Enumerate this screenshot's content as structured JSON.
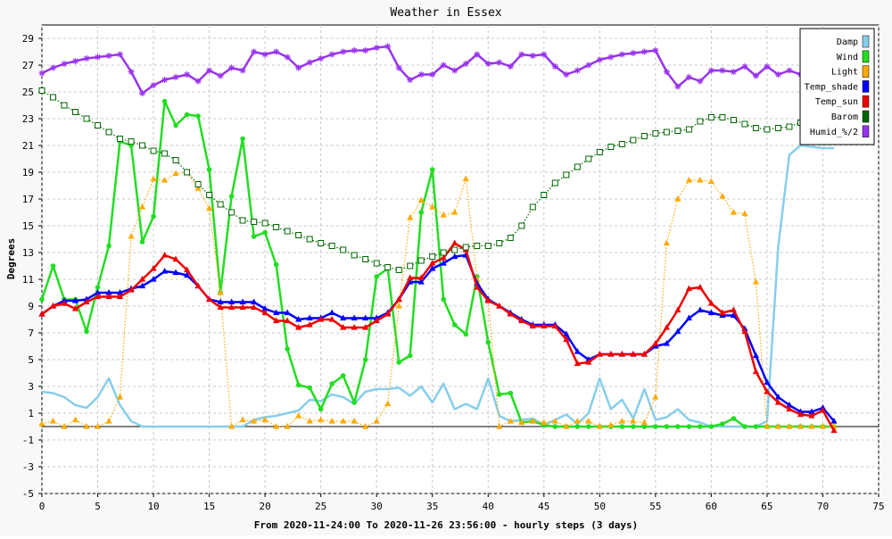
{
  "chart_data": {
    "type": "line",
    "title": "Weather in Essex",
    "xlabel": "From 2020-11-24:00 To 2020-11-26 23:56:00 - hourly steps (3 days)",
    "ylabel": "Degrees",
    "xlim": [
      0,
      75
    ],
    "ylim": [
      -5,
      30
    ],
    "x_ticks": [
      0,
      5,
      10,
      15,
      20,
      25,
      30,
      35,
      40,
      45,
      50,
      55,
      60,
      65,
      70,
      75
    ],
    "y_ticks": [
      -5,
      -3,
      -1,
      1,
      3,
      5,
      7,
      9,
      11,
      13,
      15,
      17,
      19,
      21,
      23,
      25,
      27,
      29
    ],
    "grid": true,
    "legend_position": "top-right",
    "series": [
      {
        "name": "Damp",
        "color": "#87ceeb",
        "style": "solid",
        "marker": "none",
        "values": [
          2.6,
          2.5,
          2.2,
          1.6,
          1.4,
          2.2,
          3.6,
          1.6,
          0.4,
          0,
          0,
          0,
          0,
          0,
          0,
          0,
          0,
          0,
          0,
          0.5,
          0.7,
          0.8,
          1,
          1.2,
          2,
          1.9,
          2.4,
          2.2,
          1.7,
          2.6,
          2.8,
          2.8,
          2.9,
          2.3,
          3,
          1.8,
          3.2,
          1.3,
          1.7,
          1.3,
          3.6,
          0.8,
          0.4,
          0.5,
          0.6,
          0.1,
          0.5,
          0.9,
          0.2,
          1,
          3.6,
          1.3,
          2,
          0.6,
          2.8,
          0.5,
          0.7,
          1.3,
          0.5,
          0.3,
          0,
          0,
          0,
          0,
          0,
          0.4,
          13.4,
          20.3,
          21,
          20.9,
          20.8,
          20.8
        ]
      },
      {
        "name": "Wind",
        "color": "#22dd22",
        "style": "solid",
        "marker": "circle",
        "values": [
          9.5,
          12,
          9.5,
          9.5,
          7.1,
          10.4,
          13.5,
          21.3,
          21.0,
          13.8,
          15.7,
          24.3,
          22.5,
          23.3,
          23.2,
          19.2,
          10,
          17.2,
          21.5,
          14.2,
          14.5,
          12.1,
          5.8,
          3.1,
          2.9,
          1.3,
          3.2,
          3.8,
          1.8,
          5,
          11.2,
          11.8,
          4.8,
          5.3,
          16,
          19.2,
          9.5,
          7.6,
          6.9,
          11.2,
          6.3,
          2.4,
          2.5,
          0.3,
          0.4,
          0.1,
          0,
          0,
          0,
          0,
          0,
          0,
          0,
          0,
          0,
          0,
          0,
          0,
          0,
          0,
          0,
          0.2,
          0.6,
          0,
          0,
          0,
          0,
          0,
          0,
          0,
          0,
          0
        ]
      },
      {
        "name": "Light",
        "color": "#ffaa00",
        "style": "dotted",
        "marker": "triangle",
        "values": [
          0.2,
          0.4,
          0,
          0.5,
          0,
          0,
          0.4,
          2.2,
          14.2,
          16.4,
          18.5,
          18.4,
          18.9,
          19,
          17.8,
          16.3,
          10,
          0,
          0.5,
          0.4,
          0.5,
          0,
          0,
          0.8,
          0.4,
          0.5,
          0.4,
          0.4,
          0.4,
          0,
          0.4,
          1.7,
          9,
          15.6,
          16.9,
          16.4,
          15.8,
          16,
          18.5,
          11,
          9.4,
          0,
          0.4,
          0.3,
          0.4,
          0.3,
          0.4,
          0,
          0.4,
          0.4,
          0,
          0.1,
          0.4,
          0.4,
          0.3,
          2.2,
          13.7,
          17,
          18.4,
          18.4,
          18.3,
          17.2,
          16,
          15.9,
          10.8,
          0,
          0,
          0,
          0,
          0,
          0,
          0
        ]
      },
      {
        "name": "Temp_shade",
        "color": "#0000ff",
        "style": "solid",
        "marker": "triangle",
        "values": [
          8.4,
          9,
          9.4,
          9.4,
          9.5,
          10,
          10,
          10,
          10.3,
          10.5,
          11,
          11.6,
          11.5,
          11.3,
          10.5,
          9.5,
          9.3,
          9.3,
          9.3,
          9.3,
          8.8,
          8.5,
          8.5,
          8,
          8.1,
          8.1,
          8.5,
          8.1,
          8.1,
          8.1,
          8.1,
          8.5,
          9.5,
          10.8,
          10.8,
          11.8,
          12.2,
          12.7,
          12.8,
          10.7,
          9.5,
          9,
          8.5,
          8,
          7.6,
          7.6,
          7.6,
          6.9,
          5.6,
          5.0,
          5.4,
          5.4,
          5.4,
          5.4,
          5.4,
          6,
          6.2,
          7.1,
          8.1,
          8.7,
          8.5,
          8.3,
          8.3,
          7.3,
          5.3,
          3.3,
          2.2,
          1.6,
          1.1,
          1.1,
          1.4,
          0.4
        ]
      },
      {
        "name": "Temp_sun",
        "color": "#ee0000",
        "style": "solid",
        "marker": "triangle",
        "values": [
          8.4,
          9,
          9.2,
          8.8,
          9.3,
          9.7,
          9.7,
          9.7,
          10.2,
          11,
          11.8,
          12.8,
          12.5,
          11.7,
          10.5,
          9.5,
          8.9,
          8.9,
          8.9,
          8.9,
          8.5,
          7.9,
          7.9,
          7.4,
          7.6,
          8,
          8,
          7.4,
          7.4,
          7.4,
          7.9,
          8.4,
          9.5,
          11.1,
          11.1,
          12.2,
          12.6,
          13.7,
          13.2,
          10.4,
          9.4,
          9,
          8.4,
          7.9,
          7.5,
          7.5,
          7.5,
          6.5,
          4.7,
          4.8,
          5.4,
          5.4,
          5.4,
          5.4,
          5.4,
          6.2,
          7.4,
          8.7,
          10.3,
          10.4,
          9.2,
          8.5,
          8.7,
          7.1,
          4.1,
          2.6,
          1.8,
          1.3,
          0.9,
          0.8,
          1.2,
          -0.3
        ]
      },
      {
        "name": "Barom",
        "color": "#006400",
        "style": "dotted",
        "marker": "square",
        "values": [
          25.1,
          24.6,
          24,
          23.5,
          23,
          22.5,
          22,
          21.5,
          21.3,
          21,
          20.6,
          20.4,
          19.9,
          19,
          18.1,
          17.3,
          16.6,
          16,
          15.4,
          15.3,
          15.2,
          14.9,
          14.6,
          14.3,
          14,
          13.7,
          13.5,
          13.2,
          12.8,
          12.5,
          12.2,
          11.9,
          11.7,
          12,
          12.4,
          12.7,
          13,
          13.2,
          13.4,
          13.5,
          13.5,
          13.7,
          14.1,
          15,
          16.4,
          17.3,
          18.2,
          18.8,
          19.4,
          20,
          20.5,
          20.9,
          21.1,
          21.4,
          21.7,
          21.9,
          22,
          22.1,
          22.2,
          22.8,
          23.1,
          23.1,
          22.9,
          22.6,
          22.3,
          22.2,
          22.3,
          22.4,
          22.7,
          22.9,
          23.1,
          23.2
        ]
      },
      {
        "name": "Humid_%/2",
        "color": "#9933ee",
        "style": "solid",
        "marker": "star",
        "values": [
          26.4,
          26.8,
          27.1,
          27.3,
          27.5,
          27.6,
          27.7,
          27.8,
          26.5,
          24.9,
          25.5,
          25.9,
          26.1,
          26.3,
          25.8,
          26.6,
          26.2,
          26.8,
          26.6,
          28,
          27.8,
          28,
          27.6,
          26.8,
          27.2,
          27.5,
          27.8,
          28,
          28.1,
          28.1,
          28.3,
          28.4,
          26.8,
          25.9,
          26.3,
          26.3,
          27,
          26.6,
          27.1,
          27.8,
          27.1,
          27.2,
          26.9,
          27.8,
          27.7,
          27.8,
          26.9,
          26.3,
          26.6,
          27,
          27.4,
          27.6,
          27.8,
          27.9,
          28,
          28.1,
          26.5,
          25.4,
          26.1,
          25.8,
          26.6,
          26.6,
          26.5,
          26.9,
          26.2,
          26.9,
          26.3,
          26.6,
          26.3,
          26.5,
          26.3,
          26.3
        ]
      }
    ]
  }
}
